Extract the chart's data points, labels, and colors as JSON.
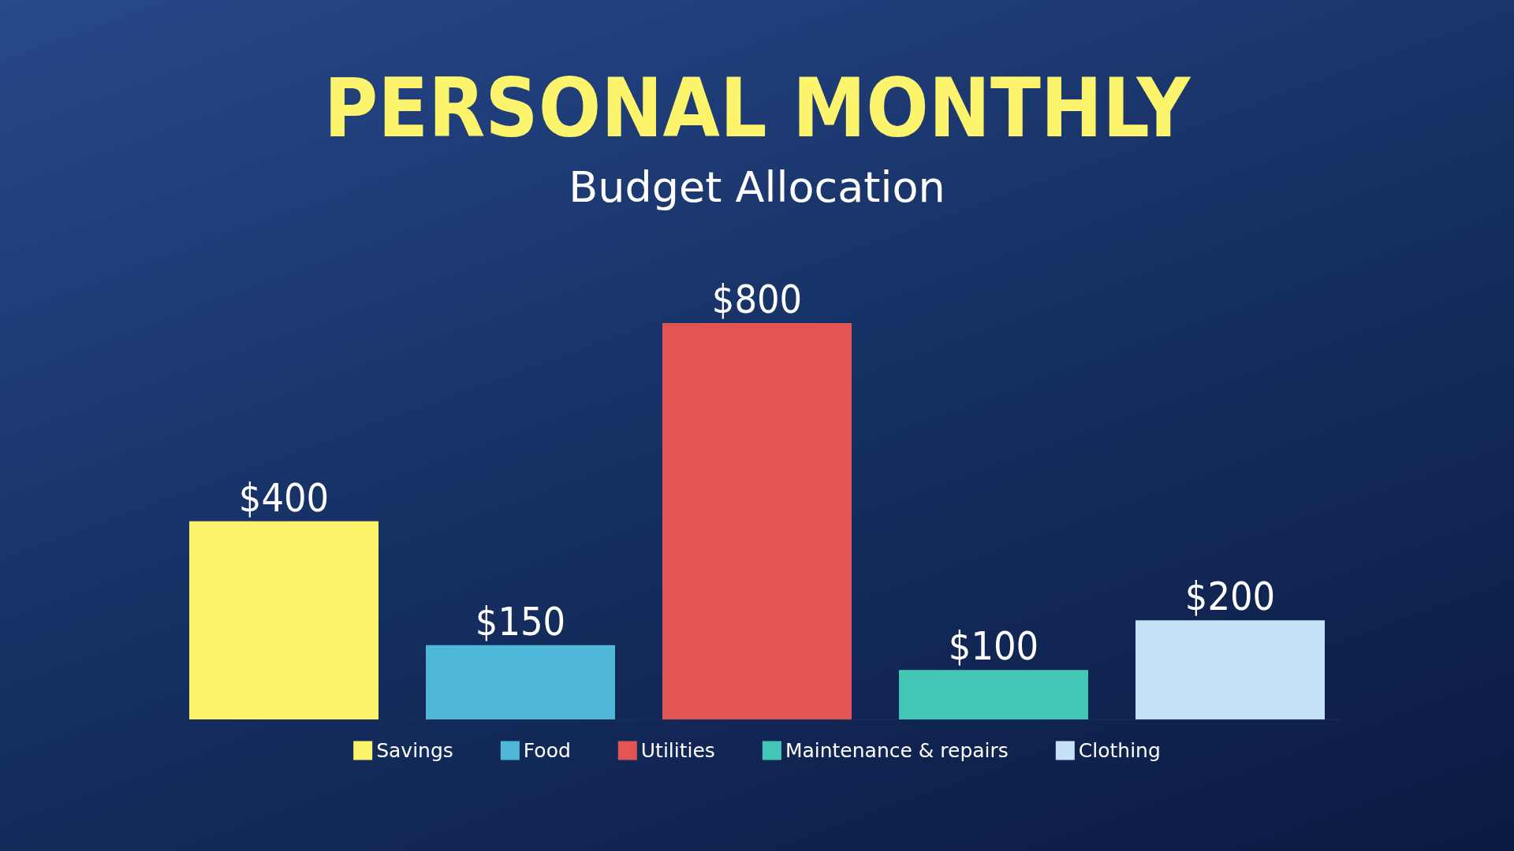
{
  "chart_data": {
    "type": "bar",
    "title": "PERSONAL MONTHLY",
    "subtitle": "Budget Allocation",
    "categories": [
      null
    ],
    "series": [
      {
        "name": "Savings",
        "color": "#fcf46c",
        "values": [
          400
        ],
        "value_labels": [
          "$400"
        ]
      },
      {
        "name": "Food",
        "color": "#4fb8d8",
        "values": [
          150
        ],
        "value_labels": [
          "$150"
        ]
      },
      {
        "name": "Utilities",
        "color": "#e35454",
        "values": [
          800
        ],
        "value_labels": [
          "$800"
        ]
      },
      {
        "name": "Maintenance & repairs",
        "color": "#43c6b6",
        "values": [
          100
        ],
        "value_labels": [
          "$100"
        ]
      },
      {
        "name": "Clothing",
        "color": "#c5e2f8",
        "values": [
          200
        ],
        "value_labels": [
          "$200"
        ]
      }
    ],
    "legend": "bottom"
  }
}
